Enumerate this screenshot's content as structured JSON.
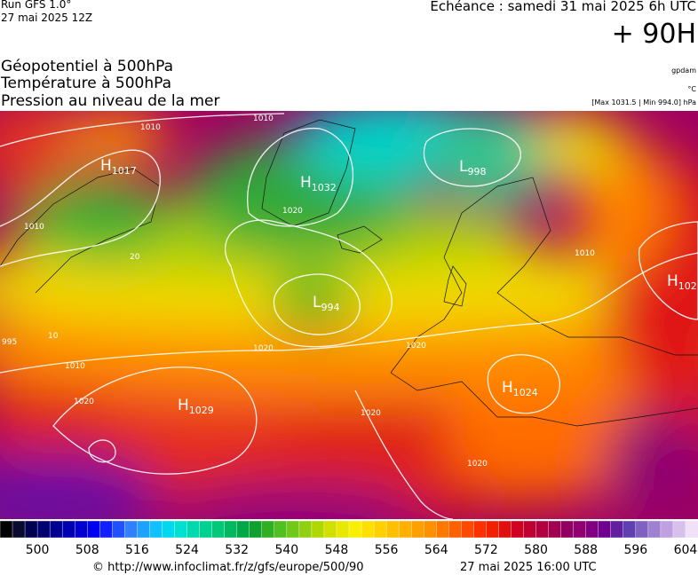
{
  "header": {
    "run": "Run GFS 1.0°",
    "run_date": "27 mai 2025 12Z",
    "valid": "Echéance : samedi 31 mai 2025 6h UTC",
    "lead": "+ 90H",
    "titles": [
      "Géopotentiel à 500hPa",
      "Température à 500hPa",
      "Pression au niveau de la mer"
    ],
    "units": [
      "gpdam",
      "°C",
      "[Max 1031.5 | Min 994.0] hPa"
    ]
  },
  "map": {
    "centers": [
      {
        "letter": "H",
        "pressure": "1017"
      },
      {
        "letter": "H",
        "pressure": "1032"
      },
      {
        "letter": "L",
        "pressure": "994"
      },
      {
        "letter": "L",
        "pressure": "998"
      },
      {
        "letter": "H",
        "pressure": "102"
      },
      {
        "letter": "H",
        "pressure": "1029"
      },
      {
        "letter": "H",
        "pressure": "1024"
      }
    ],
    "isobar_labels": [
      "1010",
      "1010",
      "1010",
      "1010",
      "1010",
      "1020",
      "1020",
      "1020",
      "1020",
      "1020",
      "1020",
      "995",
      "10",
      "20"
    ]
  },
  "colorbar": {
    "range": [
      494,
      606
    ],
    "ticks": [
      500,
      508,
      516,
      524,
      532,
      540,
      548,
      556,
      564,
      572,
      580,
      588,
      596,
      604
    ],
    "colors": [
      "#000000",
      "#0a0a30",
      "#000050",
      "#000070",
      "#000090",
      "#0000b0",
      "#0000d0",
      "#0000f0",
      "#1020ff",
      "#2050ff",
      "#3080ff",
      "#20a0ff",
      "#10c0ff",
      "#00d8f0",
      "#00e0d0",
      "#00d8b0",
      "#00d090",
      "#00c878",
      "#00b860",
      "#00a848",
      "#10a030",
      "#30b020",
      "#50c020",
      "#70c818",
      "#90d010",
      "#b0d800",
      "#d0e000",
      "#e8e800",
      "#f8f000",
      "#ffe000",
      "#ffd000",
      "#ffc000",
      "#ffb000",
      "#ffa000",
      "#ff9000",
      "#ff7800",
      "#ff6000",
      "#ff4800",
      "#ff3000",
      "#f02000",
      "#e01010",
      "#d00020",
      "#c00030",
      "#b00040",
      "#a00050",
      "#900060",
      "#900070",
      "#800080",
      "#700090",
      "#6020a0",
      "#6040b0",
      "#8060c0",
      "#a080d0",
      "#c0a0e0",
      "#d8c0ec",
      "#f0e0f8"
    ]
  },
  "footer": {
    "source": "© http://www.infoclimat.fr/z/gfs/europe/500/90",
    "generated": "27 mai 2025 16:00 UTC"
  }
}
